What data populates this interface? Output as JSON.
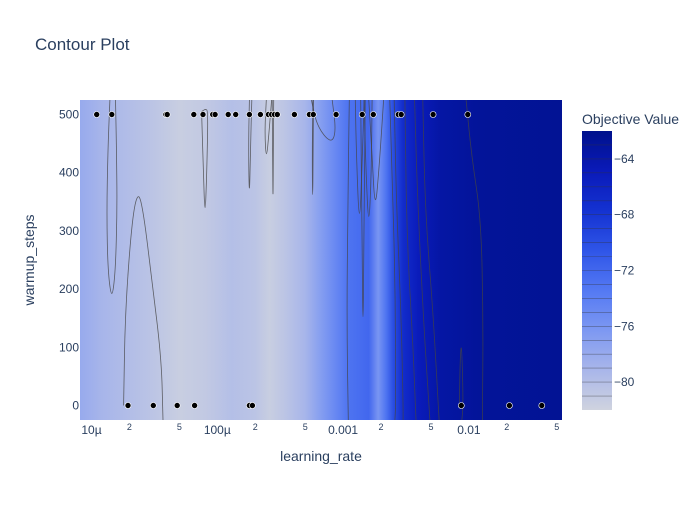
{
  "chart_data": {
    "type": "contour",
    "title": "Contour Plot",
    "xlabel": "learning_rate",
    "ylabel": "warmup_steps",
    "x_scale": "log",
    "xlim": [
      8.1e-06,
      0.055
    ],
    "ylim": [
      -25,
      525
    ],
    "x_ticks": [
      {
        "value": 1e-05,
        "label": "10µ",
        "major": true
      },
      {
        "value": 2e-05,
        "label": "2",
        "major": false
      },
      {
        "value": 5e-05,
        "label": "5",
        "major": false
      },
      {
        "value": 0.0001,
        "label": "100µ",
        "major": true
      },
      {
        "value": 0.0002,
        "label": "2",
        "major": false
      },
      {
        "value": 0.0005,
        "label": "5",
        "major": false
      },
      {
        "value": 0.001,
        "label": "0.001",
        "major": true
      },
      {
        "value": 0.002,
        "label": "2",
        "major": false
      },
      {
        "value": 0.005,
        "label": "5",
        "major": false
      },
      {
        "value": 0.01,
        "label": "0.01",
        "major": true
      },
      {
        "value": 0.02,
        "label": "2",
        "major": false
      },
      {
        "value": 0.05,
        "label": "5",
        "major": false
      }
    ],
    "y_ticks": [
      0,
      100,
      200,
      300,
      400,
      500
    ],
    "colorbar": {
      "title": "Objective Value",
      "range": [
        -82,
        -62
      ],
      "ticks": [
        -64,
        -68,
        -72,
        -76,
        -80
      ],
      "colors": [
        "#cfd3df",
        "#a9b6ea",
        "#7d98f2",
        "#5479f3",
        "#2f55e8",
        "#1432d1",
        "#0a1ab9",
        "#00118c"
      ]
    },
    "background_profile": [
      {
        "x": 8.1e-06,
        "z": -78
      },
      {
        "x": 1.2e-05,
        "z": -79
      },
      {
        "x": 3e-05,
        "z": -80.5
      },
      {
        "x": 5e-05,
        "z": -81.5
      },
      {
        "x": 8e-05,
        "z": -81
      },
      {
        "x": 0.00013,
        "z": -80
      },
      {
        "x": 0.0002,
        "z": -80.5
      },
      {
        "x": 0.00026,
        "z": -81.5
      },
      {
        "x": 0.00035,
        "z": -80.5
      },
      {
        "x": 0.0005,
        "z": -79
      },
      {
        "x": 0.00065,
        "z": -77
      },
      {
        "x": 0.00085,
        "z": -75
      },
      {
        "x": 0.0011,
        "z": -73
      },
      {
        "x": 0.0016,
        "z": -72
      },
      {
        "x": 0.0019,
        "z": -76
      },
      {
        "x": 0.0022,
        "z": -73
      },
      {
        "x": 0.0025,
        "z": -70
      },
      {
        "x": 0.003,
        "z": -67
      },
      {
        "x": 0.004,
        "z": -65
      },
      {
        "x": 0.006,
        "z": -63.5
      },
      {
        "x": 0.012,
        "z": -62.8
      },
      {
        "x": 0.055,
        "z": -62.5
      }
    ],
    "points": [
      {
        "x": 1.1e-05,
        "y": 500
      },
      {
        "x": 1.45e-05,
        "y": 500
      },
      {
        "x": 3.9e-05,
        "y": 500
      },
      {
        "x": 4e-05,
        "y": 500
      },
      {
        "x": 6.5e-05,
        "y": 500
      },
      {
        "x": 7.7e-05,
        "y": 500
      },
      {
        "x": 9.2e-05,
        "y": 500
      },
      {
        "x": 9.6e-05,
        "y": 500
      },
      {
        "x": 0.000122,
        "y": 500
      },
      {
        "x": 0.00014,
        "y": 500
      },
      {
        "x": 0.00018,
        "y": 500
      },
      {
        "x": 0.00022,
        "y": 500
      },
      {
        "x": 0.000255,
        "y": 500
      },
      {
        "x": 0.00027,
        "y": 500
      },
      {
        "x": 0.000285,
        "y": 500
      },
      {
        "x": 0.0003,
        "y": 500
      },
      {
        "x": 0.00041,
        "y": 500
      },
      {
        "x": 0.00054,
        "y": 500
      },
      {
        "x": 0.00058,
        "y": 500
      },
      {
        "x": 0.00088,
        "y": 500
      },
      {
        "x": 0.00142,
        "y": 500
      },
      {
        "x": 0.00174,
        "y": 500
      },
      {
        "x": 0.00275,
        "y": 500
      },
      {
        "x": 0.0029,
        "y": 500
      },
      {
        "x": 0.0052,
        "y": 500
      },
      {
        "x": 0.0098,
        "y": 500
      },
      {
        "x": 1.95e-05,
        "y": 0
      },
      {
        "x": 3.1e-05,
        "y": 0
      },
      {
        "x": 4.8e-05,
        "y": 0
      },
      {
        "x": 6.6e-05,
        "y": 0
      },
      {
        "x": 0.00018,
        "y": 0
      },
      {
        "x": 0.00019,
        "y": 0
      },
      {
        "x": 0.0087,
        "y": 0
      },
      {
        "x": 0.021,
        "y": 0
      },
      {
        "x": 0.038,
        "y": 0
      }
    ],
    "contour_lines": [
      [
        [
          1.4e-05,
          525
        ],
        [
          1.35e-05,
          440
        ],
        [
          1.32e-05,
          330
        ],
        [
          1.35e-05,
          230
        ],
        [
          1.45e-05,
          180
        ],
        [
          1.55e-05,
          230
        ],
        [
          1.6e-05,
          340
        ],
        [
          1.58e-05,
          440
        ],
        [
          1.55e-05,
          525
        ]
      ],
      [
        [
          1.8e-05,
          0
        ],
        [
          1.85e-05,
          160
        ],
        [
          2.1e-05,
          320
        ],
        [
          2.35e-05,
          370
        ],
        [
          2.6e-05,
          330
        ],
        [
          3e-05,
          220
        ],
        [
          3.6e-05,
          80
        ],
        [
          3.7e-05,
          -25
        ]
      ],
      [
        [
          7.5e-05,
          505
        ],
        [
          7.75e-05,
          400
        ],
        [
          8e-05,
          320
        ],
        [
          8.25e-05,
          400
        ],
        [
          8.45e-05,
          505
        ],
        [
          8.1e-05,
          510
        ],
        [
          7.5e-05,
          505
        ]
      ],
      [
        [
          0.00018,
          525
        ],
        [
          0.000177,
          440
        ],
        [
          0.00018,
          350
        ],
        [
          0.000184,
          450
        ],
        [
          0.000188,
          525
        ]
      ],
      [
        [
          0.000245,
          525
        ],
        [
          0.000238,
          470
        ],
        [
          0.000245,
          420
        ],
        [
          0.000258,
          470
        ],
        [
          0.00027,
          525
        ]
      ],
      [
        [
          0.000273,
          525
        ],
        [
          0.000275,
          430
        ],
        [
          0.000277,
          340
        ],
        [
          0.000279,
          440
        ],
        [
          0.000281,
          525
        ]
      ],
      [
        [
          0.000575,
          525
        ],
        [
          0.000568,
          430
        ],
        [
          0.000572,
          340
        ],
        [
          0.000578,
          430
        ],
        [
          0.000582,
          525
        ]
      ],
      [
        [
          0.00056,
          525
        ],
        [
          0.00062,
          480
        ],
        [
          0.0008,
          450
        ],
        [
          0.00088,
          470
        ],
        [
          0.00082,
          525
        ]
      ],
      [
        [
          0.0011,
          -25
        ],
        [
          0.00107,
          150
        ],
        [
          0.00109,
          330
        ],
        [
          0.00112,
          525
        ]
      ],
      [
        [
          0.00125,
          525
        ],
        [
          0.00128,
          420
        ],
        [
          0.00135,
          300
        ],
        [
          0.00142,
          420
        ],
        [
          0.00147,
          525
        ]
      ],
      [
        [
          0.00138,
          525
        ],
        [
          0.0014,
          380
        ],
        [
          0.00142,
          250
        ],
        [
          0.00144,
          120
        ],
        [
          0.00146,
          250
        ],
        [
          0.00148,
          400
        ],
        [
          0.0015,
          525
        ]
      ],
      [
        [
          0.00147,
          525
        ],
        [
          0.00152,
          400
        ],
        [
          0.0016,
          300
        ],
        [
          0.00168,
          400
        ],
        [
          0.0017,
          525
        ]
      ],
      [
        [
          0.0016,
          525
        ],
        [
          0.0017,
          430
        ],
        [
          0.0018,
          330
        ],
        [
          0.00195,
          420
        ],
        [
          0.0021,
          525
        ]
      ],
      [
        [
          0.00235,
          525
        ],
        [
          0.00245,
          400
        ],
        [
          0.0026,
          200
        ],
        [
          0.00262,
          0
        ],
        [
          0.00258,
          -25
        ]
      ],
      [
        [
          0.00255,
          525
        ],
        [
          0.00265,
          350
        ],
        [
          0.0029,
          150
        ],
        [
          0.003,
          0
        ],
        [
          0.003,
          -25
        ]
      ],
      [
        [
          0.0031,
          525
        ],
        [
          0.0032,
          300
        ],
        [
          0.0036,
          100
        ],
        [
          0.0038,
          -25
        ]
      ],
      [
        [
          0.0037,
          525
        ],
        [
          0.0039,
          360
        ],
        [
          0.0044,
          130
        ],
        [
          0.0049,
          -25
        ]
      ],
      [
        [
          0.0043,
          525
        ],
        [
          0.0045,
          330
        ],
        [
          0.0052,
          160
        ],
        [
          0.0058,
          -25
        ]
      ],
      [
        [
          0.0095,
          525
        ],
        [
          0.0105,
          430
        ],
        [
          0.0125,
          320
        ],
        [
          0.013,
          150
        ],
        [
          0.0128,
          -25
        ]
      ],
      [
        [
          0.0084,
          0
        ],
        [
          0.0085,
          70
        ],
        [
          0.0087,
          110
        ],
        [
          0.0089,
          60
        ],
        [
          0.009,
          0
        ],
        [
          0.0088,
          -25
        ]
      ]
    ]
  }
}
